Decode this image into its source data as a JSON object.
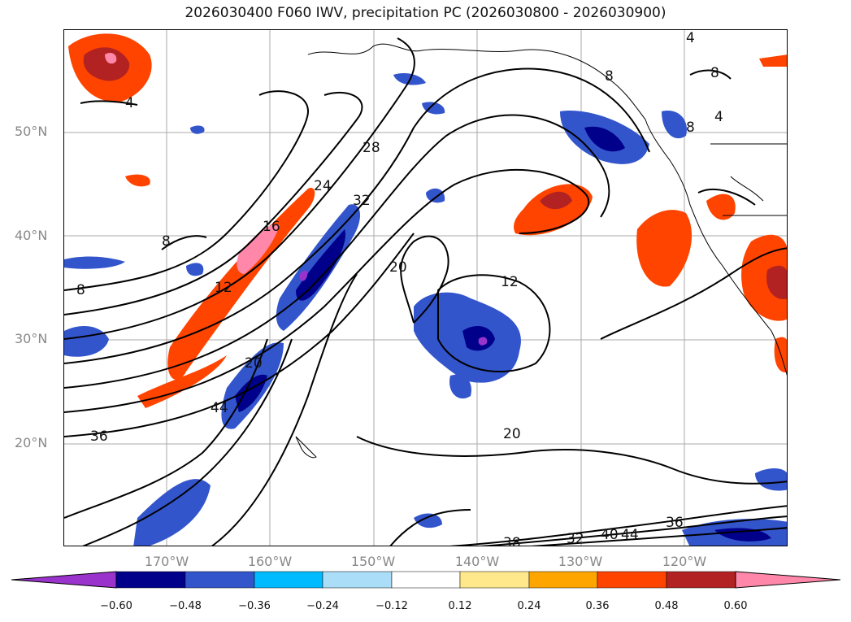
{
  "title": "2026030400 F060 IWV, precipitation PC (2026030800 - 2026030900)",
  "map": {
    "lat_labels": [
      "50°N",
      "40°N",
      "30°N",
      "20°N"
    ],
    "lon_labels": [
      "170°W",
      "160°W",
      "150°W",
      "140°W",
      "130°W",
      "120°W"
    ],
    "gridlines": true,
    "contour_color": "#000000",
    "contour_labels": [
      "4",
      "4",
      "8",
      "8",
      "8",
      "8",
      "8",
      "12",
      "12",
      "16",
      "20",
      "20",
      "20",
      "24",
      "28",
      "32",
      "32",
      "36",
      "36",
      "38",
      "40",
      "44",
      "44",
      "4"
    ]
  },
  "colorbar": {
    "ticks": [
      "−0.60",
      "−0.48",
      "−0.36",
      "−0.24",
      "−0.12",
      "0.12",
      "0.24",
      "0.36",
      "0.48",
      "0.60"
    ],
    "colors": [
      "#9933cc",
      "#00008b",
      "#3355cc",
      "#00bbff",
      "#aaddf8",
      "#ffffff",
      "#ffe88c",
      "#ffa500",
      "#ff4400",
      "#b22222",
      "#ff88aa"
    ],
    "extend": "both"
  }
}
